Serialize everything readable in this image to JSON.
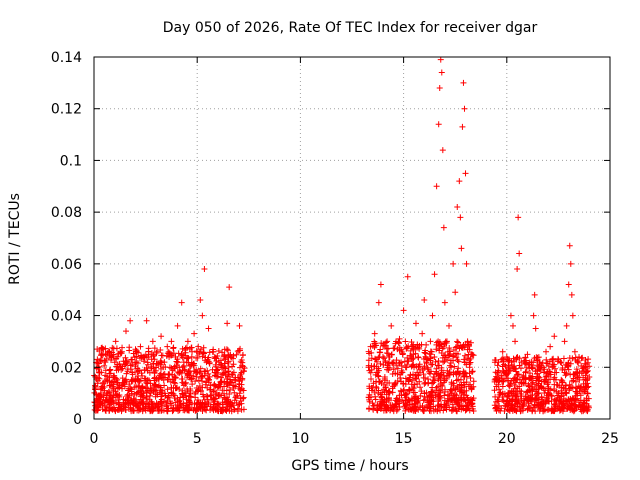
{
  "chart_data": {
    "type": "scatter",
    "title": "Day 050 of 2026, Rate Of TEC Index for receiver dgar",
    "xlabel": "GPS time / hours",
    "ylabel": "ROTI / TECUs",
    "xlim": [
      0,
      25
    ],
    "ylim": [
      0,
      0.14
    ],
    "grid": true,
    "x_ticks": [
      0,
      5,
      10,
      15,
      20,
      25
    ],
    "x_tick_labels": [
      "0",
      "5",
      "10",
      "15",
      "20",
      "25"
    ],
    "y_ticks": [
      0,
      0.02,
      0.04,
      0.06,
      0.08,
      0.1,
      0.12,
      0.14
    ],
    "y_tick_labels": [
      "0",
      "0.02",
      "0.04",
      "0.06",
      "0.08",
      "0.1",
      "0.12",
      "0.14"
    ],
    "series": [
      {
        "name": "ROTI",
        "marker": "+",
        "color": "#ff0000",
        "note": "values are an approximate reconstruction of a dense point cloud",
        "points": [
          [
            0.05,
            0.012
          ],
          [
            0.15,
            0.008
          ],
          [
            0.25,
            0.018
          ],
          [
            0.35,
            0.006
          ],
          [
            0.45,
            0.014
          ],
          [
            0.55,
            0.022
          ],
          [
            0.65,
            0.01
          ],
          [
            0.75,
            0.016
          ],
          [
            0.85,
            0.024
          ],
          [
            0.95,
            0.012
          ],
          [
            1.05,
            0.03
          ],
          [
            1.15,
            0.009
          ],
          [
            1.25,
            0.02
          ],
          [
            1.35,
            0.026
          ],
          [
            1.45,
            0.014
          ],
          [
            1.55,
            0.034
          ],
          [
            1.65,
            0.011
          ],
          [
            1.75,
            0.038
          ],
          [
            1.85,
            0.018
          ],
          [
            1.95,
            0.007
          ],
          [
            2.05,
            0.022
          ],
          [
            2.15,
            0.015
          ],
          [
            2.25,
            0.028
          ],
          [
            2.35,
            0.012
          ],
          [
            2.45,
            0.019
          ],
          [
            2.55,
            0.038
          ],
          [
            2.65,
            0.024
          ],
          [
            2.75,
            0.01
          ],
          [
            2.85,
            0.03
          ],
          [
            2.95,
            0.016
          ],
          [
            3.05,
            0.026
          ],
          [
            3.15,
            0.013
          ],
          [
            3.25,
            0.032
          ],
          [
            3.35,
            0.02
          ],
          [
            3.45,
            0.009
          ],
          [
            3.55,
            0.028
          ],
          [
            3.65,
            0.017
          ],
          [
            3.75,
            0.03
          ],
          [
            3.85,
            0.012
          ],
          [
            3.95,
            0.024
          ],
          [
            4.05,
            0.036
          ],
          [
            4.15,
            0.018
          ],
          [
            4.25,
            0.045
          ],
          [
            4.35,
            0.022
          ],
          [
            4.45,
            0.014
          ],
          [
            4.55,
            0.03
          ],
          [
            4.65,
            0.01
          ],
          [
            4.75,
            0.026
          ],
          [
            4.85,
            0.033
          ],
          [
            4.95,
            0.019
          ],
          [
            5.05,
            0.028
          ],
          [
            5.15,
            0.046
          ],
          [
            5.25,
            0.04
          ],
          [
            5.35,
            0.058
          ],
          [
            5.45,
            0.022
          ],
          [
            5.55,
            0.035
          ],
          [
            5.65,
            0.013
          ],
          [
            5.75,
            0.026
          ],
          [
            5.85,
            0.018
          ],
          [
            5.95,
            0.01
          ],
          [
            6.05,
            0.022
          ],
          [
            6.15,
            0.014
          ],
          [
            6.25,
            0.02
          ],
          [
            6.35,
            0.008
          ],
          [
            6.45,
            0.037
          ],
          [
            6.55,
            0.051
          ],
          [
            6.65,
            0.024
          ],
          [
            6.75,
            0.012
          ],
          [
            6.85,
            0.016
          ],
          [
            6.95,
            0.009
          ],
          [
            7.05,
            0.036
          ],
          [
            7.15,
            0.018
          ],
          [
            7.25,
            0.011
          ],
          [
            13.3,
            0.02
          ],
          [
            13.4,
            0.028
          ],
          [
            13.5,
            0.012
          ],
          [
            13.6,
            0.033
          ],
          [
            13.7,
            0.018
          ],
          [
            13.8,
            0.045
          ],
          [
            13.9,
            0.052
          ],
          [
            14.0,
            0.024
          ],
          [
            14.1,
            0.015
          ],
          [
            14.2,
            0.03
          ],
          [
            14.3,
            0.01
          ],
          [
            14.4,
            0.036
          ],
          [
            14.5,
            0.022
          ],
          [
            14.6,
            0.014
          ],
          [
            14.7,
            0.027
          ],
          [
            14.8,
            0.031
          ],
          [
            14.9,
            0.018
          ],
          [
            15.0,
            0.042
          ],
          [
            15.1,
            0.02
          ],
          [
            15.2,
            0.055
          ],
          [
            15.3,
            0.016
          ],
          [
            15.4,
            0.028
          ],
          [
            15.5,
            0.012
          ],
          [
            15.6,
            0.037
          ],
          [
            15.7,
            0.024
          ],
          [
            15.8,
            0.019
          ],
          [
            15.9,
            0.033
          ],
          [
            16.0,
            0.046
          ],
          [
            16.1,
            0.022
          ],
          [
            16.2,
            0.014
          ],
          [
            16.3,
            0.03
          ],
          [
            16.4,
            0.04
          ],
          [
            16.5,
            0.056
          ],
          [
            16.6,
            0.09
          ],
          [
            16.7,
            0.114
          ],
          [
            16.75,
            0.128
          ],
          [
            16.8,
            0.139
          ],
          [
            16.85,
            0.134
          ],
          [
            16.9,
            0.104
          ],
          [
            16.95,
            0.074
          ],
          [
            17.0,
            0.045
          ],
          [
            17.1,
            0.03
          ],
          [
            17.2,
            0.036
          ],
          [
            17.3,
            0.02
          ],
          [
            17.4,
            0.06
          ],
          [
            17.5,
            0.049
          ],
          [
            17.6,
            0.082
          ],
          [
            17.7,
            0.092
          ],
          [
            17.75,
            0.078
          ],
          [
            17.8,
            0.066
          ],
          [
            17.85,
            0.113
          ],
          [
            17.9,
            0.13
          ],
          [
            17.95,
            0.12
          ],
          [
            18.0,
            0.095
          ],
          [
            18.05,
            0.06
          ],
          [
            18.1,
            0.03
          ],
          [
            18.2,
            0.02
          ],
          [
            18.3,
            0.012
          ],
          [
            19.5,
            0.015
          ],
          [
            19.6,
            0.022
          ],
          [
            19.7,
            0.01
          ],
          [
            19.8,
            0.026
          ],
          [
            19.9,
            0.018
          ],
          [
            20.0,
            0.024
          ],
          [
            20.1,
            0.013
          ],
          [
            20.2,
            0.04
          ],
          [
            20.3,
            0.036
          ],
          [
            20.4,
            0.03
          ],
          [
            20.5,
            0.058
          ],
          [
            20.55,
            0.078
          ],
          [
            20.6,
            0.064
          ],
          [
            20.7,
            0.022
          ],
          [
            20.8,
            0.014
          ],
          [
            20.9,
            0.018
          ],
          [
            21.0,
            0.025
          ],
          [
            21.1,
            0.011
          ],
          [
            21.2,
            0.02
          ],
          [
            21.3,
            0.04
          ],
          [
            21.35,
            0.048
          ],
          [
            21.4,
            0.035
          ],
          [
            21.5,
            0.016
          ],
          [
            21.6,
            0.022
          ],
          [
            21.7,
            0.012
          ],
          [
            21.8,
            0.018
          ],
          [
            21.9,
            0.026
          ],
          [
            22.0,
            0.014
          ],
          [
            22.1,
            0.028
          ],
          [
            22.2,
            0.02
          ],
          [
            22.3,
            0.032
          ],
          [
            22.4,
            0.018
          ],
          [
            22.5,
            0.01
          ],
          [
            22.6,
            0.022
          ],
          [
            22.7,
            0.014
          ],
          [
            22.8,
            0.03
          ],
          [
            22.9,
            0.036
          ],
          [
            23.0,
            0.052
          ],
          [
            23.05,
            0.067
          ],
          [
            23.1,
            0.06
          ],
          [
            23.15,
            0.048
          ],
          [
            23.2,
            0.04
          ],
          [
            23.3,
            0.026
          ],
          [
            23.4,
            0.018
          ],
          [
            23.5,
            0.024
          ],
          [
            23.6,
            0.012
          ],
          [
            23.7,
            0.016
          ],
          [
            23.8,
            0.02
          ],
          [
            23.9,
            0.01
          ]
        ]
      }
    ],
    "segments": [
      {
        "x_start": 0.0,
        "x_end": 7.3,
        "typical_max": 0.028
      },
      {
        "x_start": 13.3,
        "x_end": 18.4,
        "typical_max": 0.03
      },
      {
        "x_start": 19.4,
        "x_end": 24.0,
        "typical_max": 0.024
      }
    ]
  }
}
